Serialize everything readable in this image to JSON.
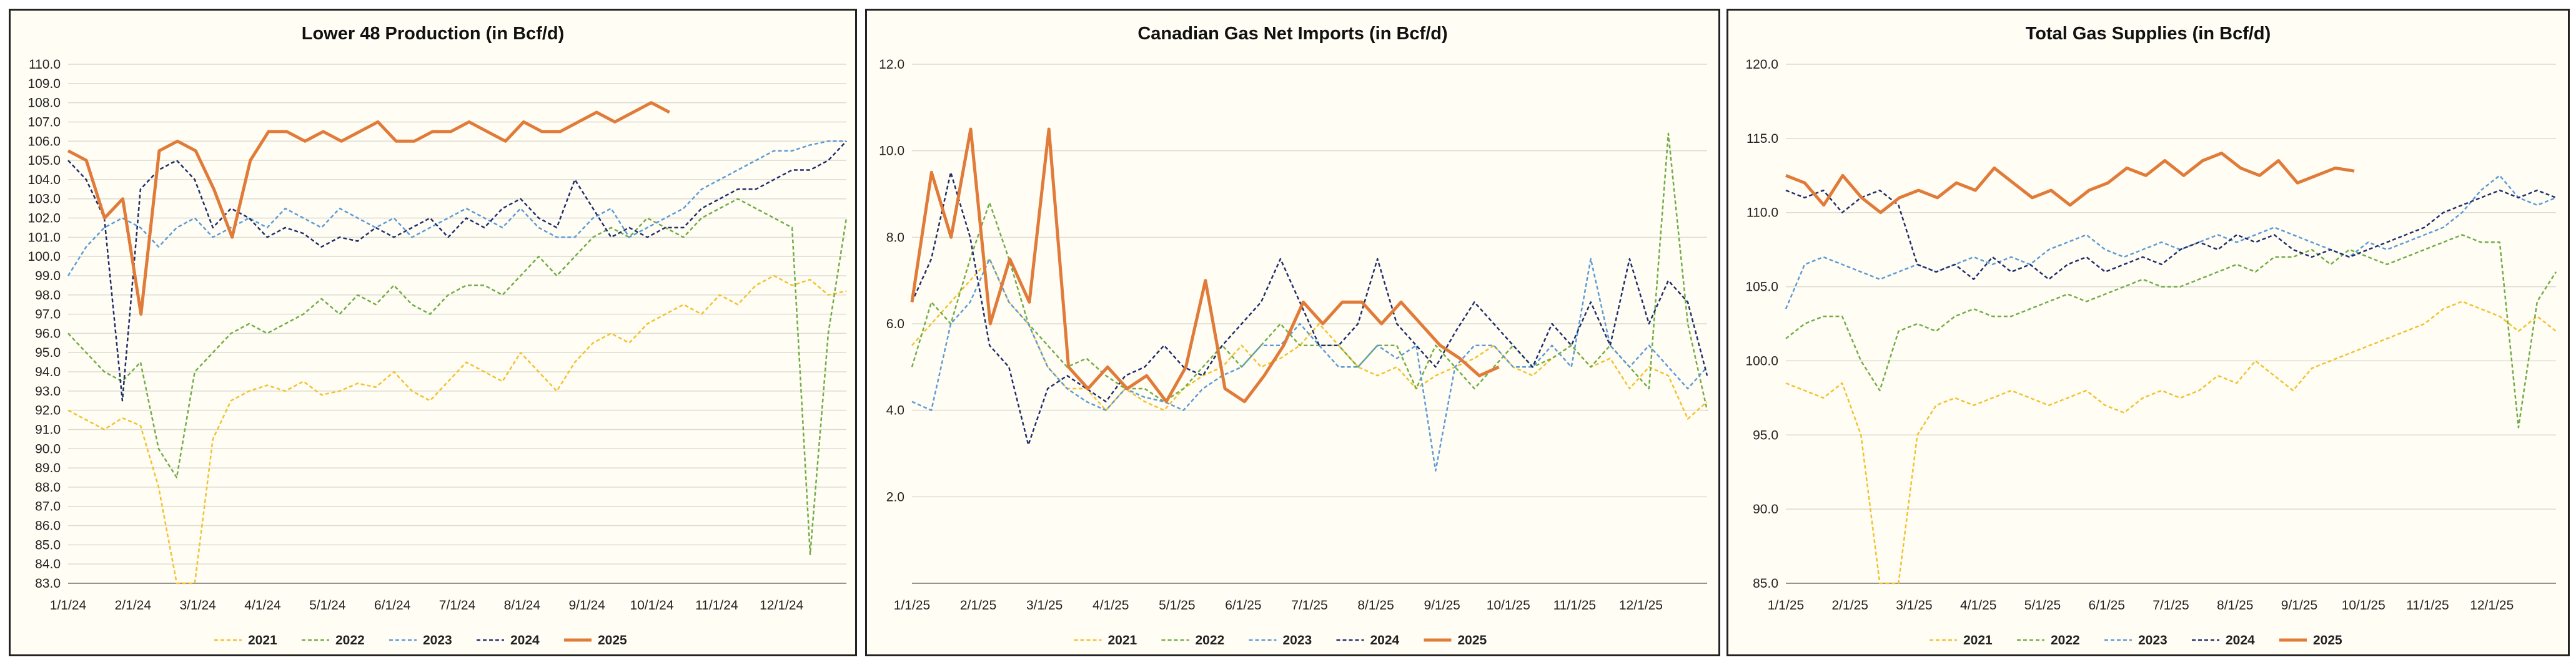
{
  "series_colors": {
    "2021": "#f2c12e",
    "2022": "#70ad47",
    "2023": "#5b9bd5",
    "2024": "#1f2e6b",
    "2025": "#e07b39"
  },
  "chart_data": [
    {
      "type": "line",
      "title": "Lower 48 Production (in Bcf/d)",
      "x_tick_labels": [
        "1/1/24",
        "2/1/24",
        "3/1/24",
        "4/1/24",
        "5/1/24",
        "6/1/24",
        "7/1/24",
        "8/1/24",
        "9/1/24",
        "10/1/24",
        "11/1/24",
        "12/1/24"
      ],
      "y_tick_labels": [
        "83.0",
        "84.0",
        "85.0",
        "86.0",
        "87.0",
        "88.0",
        "89.0",
        "90.0",
        "91.0",
        "92.0",
        "93.0",
        "94.0",
        "95.0",
        "96.0",
        "97.0",
        "98.0",
        "99.0",
        "100.0",
        "101.0",
        "102.0",
        "103.0",
        "104.0",
        "105.0",
        "106.0",
        "107.0",
        "108.0",
        "109.0",
        "110.0"
      ],
      "ylim": [
        83,
        110
      ],
      "legend_position": "bottom",
      "series": [
        {
          "name": "2021",
          "values": [
            92.0,
            91.5,
            91.0,
            91.6,
            91.2,
            88.0,
            83.0,
            83.0,
            90.5,
            92.5,
            93.0,
            93.3,
            93.0,
            93.5,
            92.8,
            93.0,
            93.4,
            93.2,
            94.0,
            93.0,
            92.5,
            93.5,
            94.5,
            94.0,
            93.5,
            95.0,
            94.0,
            93.0,
            94.5,
            95.5,
            96.0,
            95.5,
            96.5,
            97.0,
            97.5,
            97.0,
            98.0,
            97.5,
            98.5,
            99.0,
            98.5,
            98.8,
            98.0,
            98.2
          ]
        },
        {
          "name": "2022",
          "values": [
            96.0,
            95.0,
            94.0,
            93.5,
            94.5,
            90.0,
            88.5,
            94.0,
            95.0,
            96.0,
            96.5,
            96.0,
            96.5,
            97.0,
            97.8,
            97.0,
            98.0,
            97.5,
            98.5,
            97.5,
            97.0,
            98.0,
            98.5,
            98.5,
            98.0,
            99.0,
            100.0,
            99.0,
            100.0,
            101.0,
            101.5,
            101.0,
            102.0,
            101.5,
            101.0,
            102.0,
            102.5,
            103.0,
            102.5,
            102.0,
            101.5,
            84.5,
            96.0,
            102.0
          ]
        },
        {
          "name": "2023",
          "values": [
            99.0,
            100.5,
            101.5,
            102.0,
            101.5,
            100.5,
            101.5,
            102.0,
            101.0,
            101.5,
            102.0,
            101.5,
            102.5,
            102.0,
            101.5,
            102.5,
            102.0,
            101.5,
            102.0,
            101.0,
            101.5,
            102.0,
            102.5,
            102.0,
            101.5,
            102.5,
            101.5,
            101.0,
            101.0,
            102.0,
            102.5,
            101.0,
            101.5,
            102.0,
            102.5,
            103.5,
            104.0,
            104.5,
            105.0,
            105.5,
            105.5,
            105.8,
            106.0,
            106.0
          ]
        },
        {
          "name": "2024",
          "values": [
            105.0,
            104.0,
            102.0,
            92.5,
            103.5,
            104.5,
            105.0,
            104.0,
            101.5,
            102.5,
            102.0,
            101.0,
            101.5,
            101.2,
            100.5,
            101.0,
            100.8,
            101.5,
            101.0,
            101.5,
            102.0,
            101.0,
            102.0,
            101.5,
            102.5,
            103.0,
            102.0,
            101.5,
            104.0,
            102.5,
            101.0,
            101.5,
            101.0,
            101.5,
            101.5,
            102.5,
            103.0,
            103.5,
            103.5,
            104.0,
            104.5,
            104.5,
            105.0,
            106.0
          ]
        },
        {
          "name": "2025",
          "values": [
            105.5,
            105.0,
            102.0,
            103.0,
            97.0,
            105.5,
            106.0,
            105.5,
            103.5,
            101.0,
            105.0,
            106.5,
            106.5,
            106.0,
            106.5,
            106.0,
            106.5,
            107.0,
            106.0,
            106.0,
            106.5,
            106.5,
            107.0,
            106.5,
            106.0,
            107.0,
            106.5,
            106.5,
            107.0,
            107.5,
            107.0,
            107.5,
            108.0,
            107.5
          ]
        }
      ]
    },
    {
      "type": "line",
      "title": "Canadian Gas Net Imports (in Bcf/d)",
      "x_tick_labels": [
        "1/1/25",
        "2/1/25",
        "3/1/25",
        "4/1/25",
        "5/1/25",
        "6/1/25",
        "7/1/25",
        "8/1/25",
        "9/1/25",
        "10/1/25",
        "11/1/25",
        "12/1/25"
      ],
      "y_tick_labels": [
        "",
        "2.0",
        "4.0",
        "6.0",
        "8.0",
        "10.0",
        "12.0"
      ],
      "ylim": [
        0,
        12
      ],
      "legend_position": "bottom",
      "series": [
        {
          "name": "2021",
          "values": [
            5.5,
            6.0,
            6.5,
            7.0,
            7.5,
            6.5,
            6.0,
            5.0,
            4.5,
            4.5,
            4.0,
            4.5,
            4.2,
            4.0,
            4.5,
            4.8,
            5.0,
            5.5,
            5.0,
            5.2,
            5.5,
            6.0,
            5.5,
            5.0,
            4.8,
            5.0,
            4.5,
            4.8,
            5.0,
            5.2,
            5.5,
            5.0,
            4.8,
            5.2,
            5.5,
            5.0,
            5.2,
            4.5,
            5.0,
            4.8,
            3.8,
            4.2
          ]
        },
        {
          "name": "2022",
          "values": [
            5.0,
            6.5,
            6.0,
            7.5,
            8.8,
            7.5,
            6.0,
            5.5,
            5.0,
            5.2,
            4.8,
            4.5,
            4.5,
            4.2,
            4.5,
            5.0,
            5.5,
            5.0,
            5.5,
            6.0,
            5.5,
            5.5,
            5.5,
            5.0,
            5.5,
            5.5,
            4.5,
            5.5,
            5.0,
            4.5,
            5.0,
            5.5,
            5.0,
            5.2,
            5.5,
            5.0,
            5.5,
            5.0,
            4.5,
            10.4,
            6.0,
            4.0
          ]
        },
        {
          "name": "2023",
          "values": [
            4.2,
            4.0,
            6.0,
            6.5,
            7.5,
            6.5,
            6.0,
            5.0,
            4.5,
            4.2,
            4.0,
            4.5,
            4.3,
            4.2,
            4.0,
            4.5,
            4.8,
            5.0,
            5.5,
            5.5,
            6.0,
            5.5,
            5.0,
            5.0,
            5.5,
            5.2,
            5.5,
            2.6,
            5.0,
            5.5,
            5.5,
            5.0,
            5.0,
            5.5,
            5.0,
            7.5,
            5.5,
            5.0,
            5.5,
            5.0,
            4.5,
            5.0
          ]
        },
        {
          "name": "2024",
          "values": [
            6.5,
            7.5,
            9.5,
            8.0,
            5.5,
            5.0,
            3.2,
            4.5,
            4.8,
            4.5,
            4.2,
            4.8,
            5.0,
            5.5,
            5.0,
            4.8,
            5.5,
            6.0,
            6.5,
            7.5,
            6.5,
            5.5,
            5.5,
            6.0,
            7.5,
            6.0,
            5.5,
            5.0,
            5.8,
            6.5,
            6.0,
            5.5,
            5.0,
            6.0,
            5.5,
            6.5,
            5.5,
            7.5,
            6.0,
            7.0,
            6.5,
            4.8
          ]
        },
        {
          "name": "2025",
          "values": [
            6.5,
            9.5,
            8.0,
            10.5,
            6.0,
            7.5,
            6.5,
            10.5,
            5.0,
            4.5,
            5.0,
            4.5,
            4.8,
            4.2,
            5.0,
            7.0,
            4.5,
            4.2,
            4.8,
            5.5,
            6.5,
            6.0,
            6.5,
            6.5,
            6.0,
            6.5,
            6.0,
            5.5,
            5.2,
            4.8,
            5.0
          ]
        }
      ]
    },
    {
      "type": "line",
      "title": "Total Gas Supplies (in Bcf/d)",
      "x_tick_labels": [
        "1/1/25",
        "2/1/25",
        "3/1/25",
        "4/1/25",
        "5/1/25",
        "6/1/25",
        "7/1/25",
        "8/1/25",
        "9/1/25",
        "10/1/25",
        "11/1/25",
        "12/1/25"
      ],
      "y_tick_labels": [
        "85.0",
        "90.0",
        "95.0",
        "100.0",
        "105.0",
        "110.0",
        "115.0",
        "120.0"
      ],
      "ylim": [
        85,
        120
      ],
      "legend_position": "bottom",
      "series": [
        {
          "name": "2021",
          "values": [
            98.5,
            98.0,
            97.5,
            98.5,
            95.0,
            85.0,
            85.0,
            95.0,
            97.0,
            97.5,
            97.0,
            97.5,
            98.0,
            97.5,
            97.0,
            97.5,
            98.0,
            97.0,
            96.5,
            97.5,
            98.0,
            97.5,
            98.0,
            99.0,
            98.5,
            100.0,
            99.0,
            98.0,
            99.5,
            100.0,
            100.5,
            101.0,
            101.5,
            102.0,
            102.5,
            103.5,
            104.0,
            103.5,
            103.0,
            102.0,
            103.0,
            102.0
          ]
        },
        {
          "name": "2022",
          "values": [
            101.5,
            102.5,
            103.0,
            103.0,
            100.0,
            98.0,
            102.0,
            102.5,
            102.0,
            103.0,
            103.5,
            103.0,
            103.0,
            103.5,
            104.0,
            104.5,
            104.0,
            104.5,
            105.0,
            105.5,
            105.0,
            105.0,
            105.5,
            106.0,
            106.5,
            106.0,
            107.0,
            107.0,
            107.5,
            106.5,
            107.5,
            107.0,
            106.5,
            107.0,
            107.5,
            108.0,
            108.5,
            108.0,
            108.0,
            95.5,
            104.0,
            106.0
          ]
        },
        {
          "name": "2023",
          "values": [
            103.5,
            106.5,
            107.0,
            106.5,
            106.0,
            105.5,
            106.0,
            106.5,
            106.0,
            106.5,
            107.0,
            106.5,
            107.0,
            106.5,
            107.5,
            108.0,
            108.5,
            107.5,
            107.0,
            107.5,
            108.0,
            107.5,
            108.0,
            108.5,
            108.0,
            108.5,
            109.0,
            108.5,
            108.0,
            107.5,
            107.0,
            108.0,
            107.5,
            108.0,
            108.5,
            109.0,
            110.0,
            111.5,
            112.5,
            111.0,
            110.5,
            111.0
          ]
        },
        {
          "name": "2024",
          "values": [
            111.5,
            111.0,
            111.5,
            110.0,
            111.0,
            111.5,
            110.5,
            106.5,
            106.0,
            106.5,
            105.5,
            107.0,
            106.0,
            106.5,
            105.5,
            106.5,
            107.0,
            106.0,
            106.5,
            107.0,
            106.5,
            107.5,
            108.0,
            107.5,
            108.5,
            108.0,
            108.5,
            107.5,
            107.0,
            107.5,
            107.0,
            107.5,
            108.0,
            108.5,
            109.0,
            110.0,
            110.5,
            111.0,
            111.5,
            111.0,
            111.5,
            111.0
          ]
        },
        {
          "name": "2025",
          "values": [
            112.5,
            112.0,
            110.5,
            112.5,
            111.0,
            110.0,
            111.0,
            111.5,
            111.0,
            112.0,
            111.5,
            113.0,
            112.0,
            111.0,
            111.5,
            110.5,
            111.5,
            112.0,
            113.0,
            112.5,
            113.5,
            112.5,
            113.5,
            114.0,
            113.0,
            112.5,
            113.5,
            112.0,
            112.5,
            113.0,
            112.8
          ]
        }
      ]
    }
  ]
}
